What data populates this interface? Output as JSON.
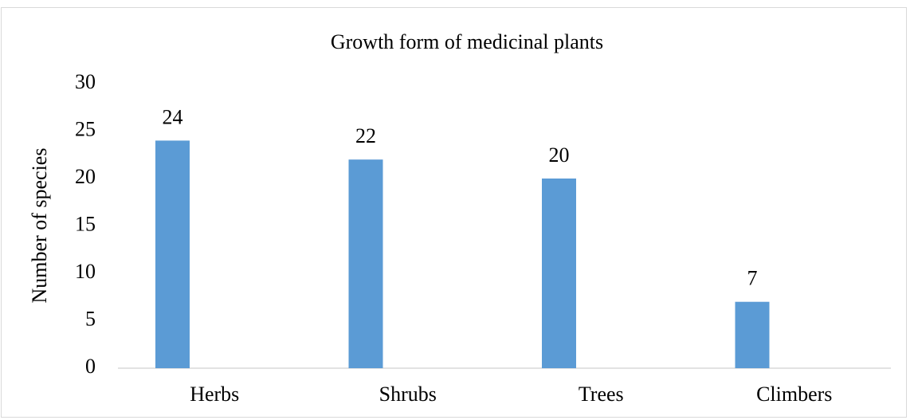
{
  "chart_data": {
    "type": "bar",
    "title": "Growth form of medicinal plants",
    "y_label": "Number of species",
    "categories": [
      "Herbs",
      "Shrubs",
      "Trees",
      "Climbers"
    ],
    "values": [
      24,
      22,
      20,
      7
    ],
    "color": "#5b9bd5",
    "ylim": [
      0,
      30
    ],
    "yticks": [
      0,
      5,
      10,
      15,
      20,
      25,
      30
    ],
    "grid": false
  }
}
